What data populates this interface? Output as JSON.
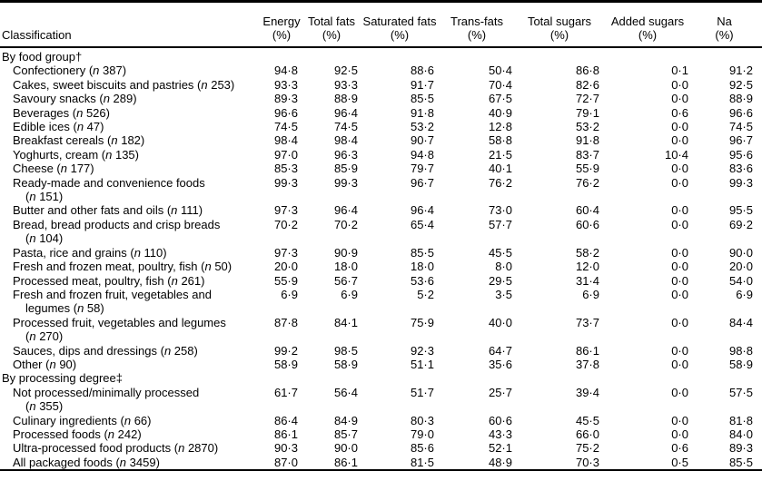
{
  "table": {
    "classification_header": "Classification",
    "columns": [
      {
        "label": "Energy",
        "unit": "(%)"
      },
      {
        "label": "Total fats",
        "unit": "(%)"
      },
      {
        "label": "Saturated fats",
        "unit": "(%)"
      },
      {
        "label": "Trans-fats",
        "unit": "(%)"
      },
      {
        "label": "Total sugars",
        "unit": "(%)"
      },
      {
        "label": "Added sugars",
        "unit": "(%)"
      },
      {
        "label": "Na",
        "unit": "(%)"
      }
    ],
    "rows": [
      {
        "type": "section",
        "lines": [
          "By food group†"
        ]
      },
      {
        "type": "data",
        "lines": [
          "Confectionery (n 387)"
        ],
        "values": [
          "94·8",
          "92·5",
          "88·6",
          "50·4",
          "86·8",
          "0·1",
          "91·2"
        ]
      },
      {
        "type": "data",
        "lines": [
          "Cakes, sweet biscuits and pastries (n 253)"
        ],
        "values": [
          "93·3",
          "93·3",
          "91·7",
          "70·4",
          "82·6",
          "0·0",
          "92·5"
        ]
      },
      {
        "type": "data",
        "lines": [
          "Savoury snacks (n 289)"
        ],
        "values": [
          "89·3",
          "88·9",
          "85·5",
          "67·5",
          "72·7",
          "0·0",
          "88·9"
        ]
      },
      {
        "type": "data",
        "lines": [
          "Beverages (n 526)"
        ],
        "values": [
          "96·6",
          "96·4",
          "91·8",
          "40·9",
          "79·1",
          "0·6",
          "96·6"
        ]
      },
      {
        "type": "data",
        "lines": [
          "Edible ices (n 47)"
        ],
        "values": [
          "74·5",
          "74·5",
          "53·2",
          "12·8",
          "53·2",
          "0·0",
          "74·5"
        ]
      },
      {
        "type": "data",
        "lines": [
          "Breakfast cereals (n 182)"
        ],
        "values": [
          "98·4",
          "98·4",
          "90·7",
          "58·8",
          "91·8",
          "0·0",
          "96·7"
        ]
      },
      {
        "type": "data",
        "lines": [
          "Yoghurts, cream (n 135)"
        ],
        "values": [
          "97·0",
          "96·3",
          "94·8",
          "21·5",
          "83·7",
          "10·4",
          "95·6"
        ]
      },
      {
        "type": "data",
        "lines": [
          "Cheese (n 177)"
        ],
        "values": [
          "85·3",
          "85·9",
          "79·7",
          "40·1",
          "55·9",
          "0·0",
          "83·6"
        ]
      },
      {
        "type": "data",
        "lines": [
          "Ready-made and convenience foods",
          "(n 151)"
        ],
        "values": [
          "99·3",
          "99·3",
          "96·7",
          "76·2",
          "76·2",
          "0·0",
          "99·3"
        ]
      },
      {
        "type": "data",
        "lines": [
          "Butter and other fats and oils (n 111)"
        ],
        "values": [
          "97·3",
          "96·4",
          "96·4",
          "73·0",
          "60·4",
          "0·0",
          "95·5"
        ]
      },
      {
        "type": "data",
        "lines": [
          "Bread, bread products and crisp breads",
          "(n 104)"
        ],
        "values": [
          "70·2",
          "70·2",
          "65·4",
          "57·7",
          "60·6",
          "0·0",
          "69·2"
        ]
      },
      {
        "type": "data",
        "lines": [
          "Pasta, rice and grains (n 110)"
        ],
        "values": [
          "97·3",
          "90·9",
          "85·5",
          "45·5",
          "58·2",
          "0·0",
          "90·0"
        ]
      },
      {
        "type": "data",
        "lines": [
          "Fresh and frozen meat, poultry, fish (n 50)"
        ],
        "values": [
          "20·0",
          "18·0",
          "18·0",
          "8·0",
          "12·0",
          "0·0",
          "20·0"
        ]
      },
      {
        "type": "data",
        "lines": [
          "Processed meat, poultry, fish (n 261)"
        ],
        "values": [
          "55·9",
          "56·7",
          "53·6",
          "29·5",
          "31·4",
          "0·0",
          "54·0"
        ]
      },
      {
        "type": "data",
        "lines": [
          "Fresh and frozen fruit, vegetables and",
          "legumes (n 58)"
        ],
        "values": [
          "6·9",
          "6·9",
          "5·2",
          "3·5",
          "6·9",
          "0·0",
          "6·9"
        ]
      },
      {
        "type": "data",
        "lines": [
          "Processed fruit, vegetables and legumes",
          "(n 270)"
        ],
        "values": [
          "87·8",
          "84·1",
          "75·9",
          "40·0",
          "73·7",
          "0·0",
          "84·4"
        ]
      },
      {
        "type": "data",
        "lines": [
          "Sauces, dips and dressings (n 258)"
        ],
        "values": [
          "99·2",
          "98·5",
          "92·3",
          "64·7",
          "86·1",
          "0·0",
          "98·8"
        ]
      },
      {
        "type": "data",
        "lines": [
          "Other (n 90)"
        ],
        "values": [
          "58·9",
          "58·9",
          "51·1",
          "35·6",
          "37·8",
          "0·0",
          "58·9"
        ]
      },
      {
        "type": "section",
        "lines": [
          "By processing degree‡"
        ]
      },
      {
        "type": "data",
        "lines": [
          "Not processed/minimally processed",
          "(n 355)"
        ],
        "values": [
          "61·7",
          "56·4",
          "51·7",
          "25·7",
          "39·4",
          "0·0",
          "57·5"
        ]
      },
      {
        "type": "data",
        "lines": [
          "Culinary ingredients (n 66)"
        ],
        "values": [
          "86·4",
          "84·9",
          "80·3",
          "60·6",
          "45·5",
          "0·0",
          "81·8"
        ]
      },
      {
        "type": "data",
        "lines": [
          "Processed foods (n 242)"
        ],
        "values": [
          "86·1",
          "85·7",
          "79·0",
          "43·3",
          "66·0",
          "0·0",
          "84·0"
        ]
      },
      {
        "type": "data",
        "lines": [
          "Ultra-processed food products (n 2870)"
        ],
        "values": [
          "90·3",
          "90·0",
          "85·6",
          "52·1",
          "75·2",
          "0·6",
          "89·3"
        ]
      },
      {
        "type": "data",
        "lines": [
          "All packaged foods (n 3459)"
        ],
        "values": [
          "87·0",
          "86·1",
          "81·5",
          "48·9",
          "70·3",
          "0·5",
          "85·5"
        ]
      }
    ]
  }
}
